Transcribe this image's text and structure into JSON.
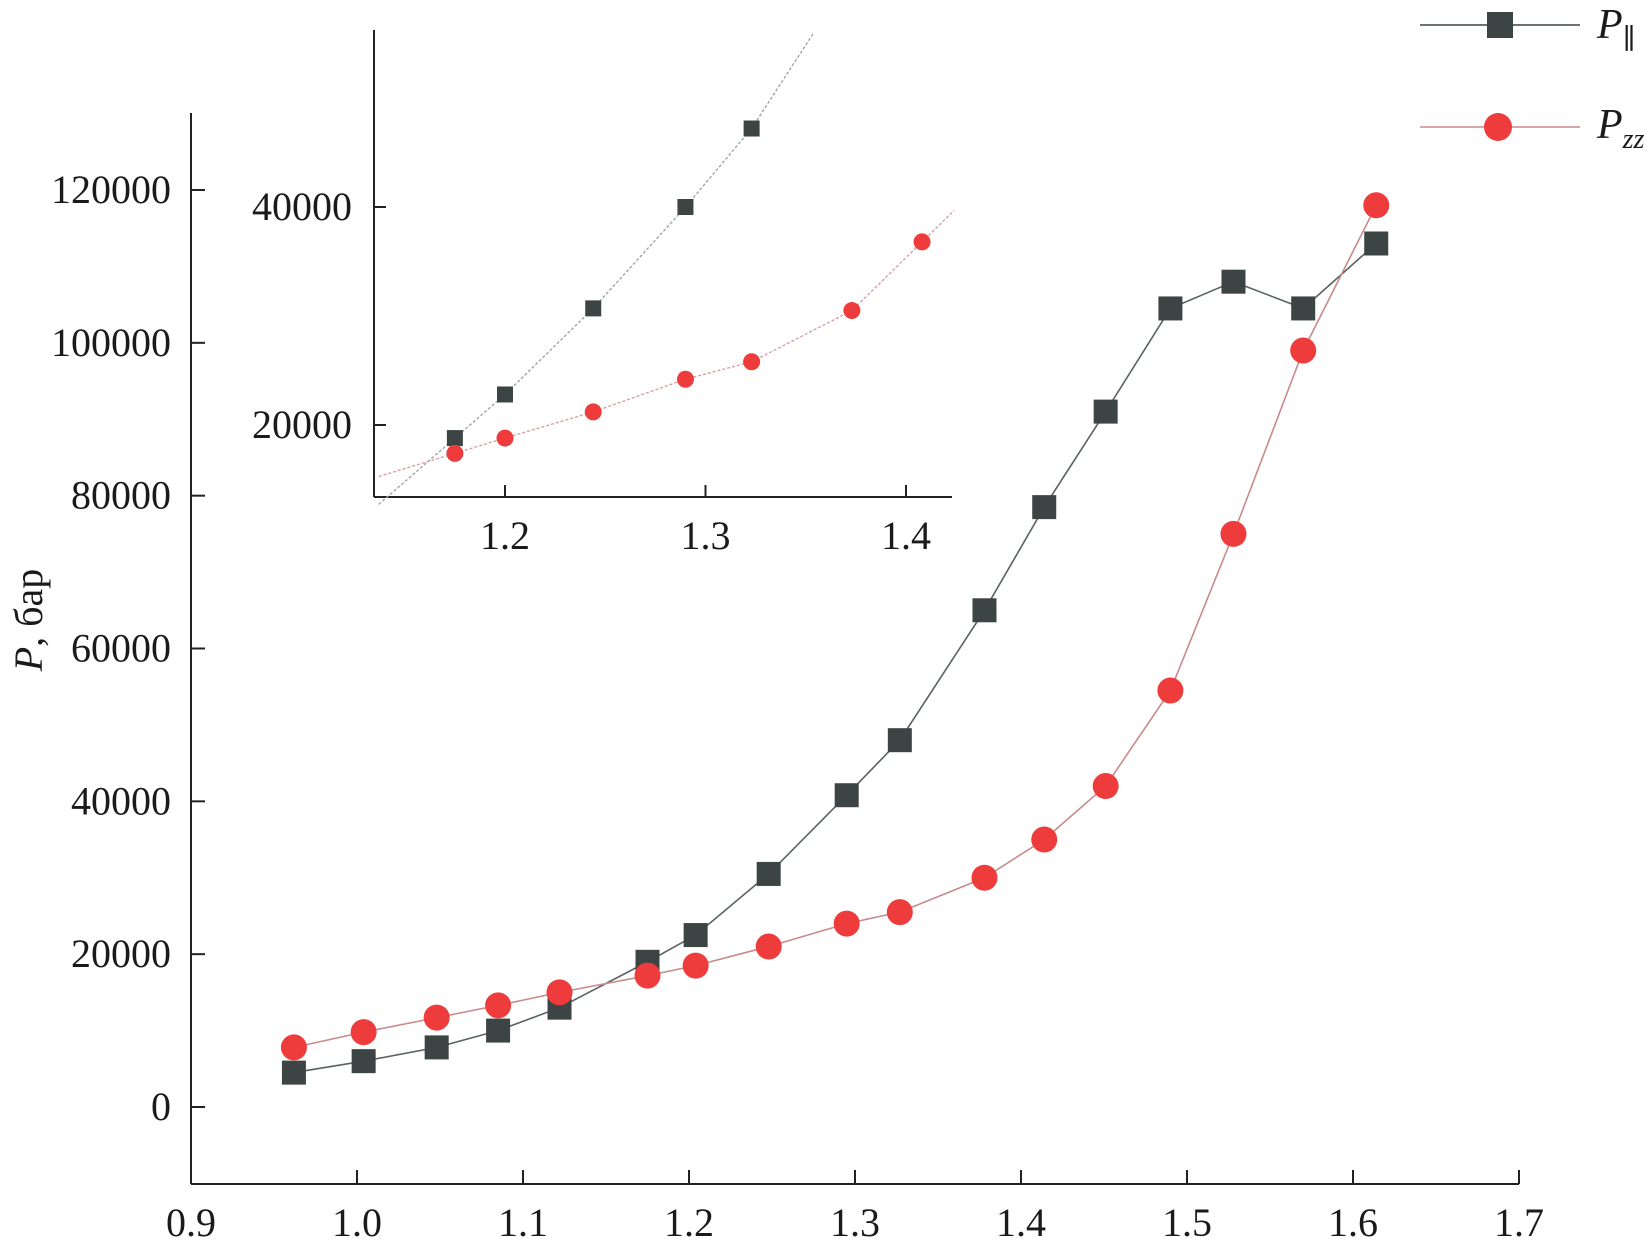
{
  "chart_data": [
    {
      "type": "line",
      "title": "",
      "xlabel": "",
      "ylabel": "P, бар",
      "ylabel_symbol": "P",
      "ylabel_unit": ", бар",
      "xlim": [
        0.9,
        1.7
      ],
      "ylim": [
        -10000,
        130000
      ],
      "x_ticks": [
        "0.9",
        "1.0",
        "1.1",
        "1.2",
        "1.3",
        "1.4",
        "1.5",
        "1.6",
        "1.7"
      ],
      "y_ticks": [
        "0",
        "20000",
        "40000",
        "60000",
        "80000",
        "100000",
        "120000"
      ],
      "legend_position": "top-right",
      "series": [
        {
          "name": "P∥",
          "name_base": "P",
          "name_sub": "∥",
          "color": "#3d4444",
          "marker": "square",
          "x": [
            0.962,
            1.004,
            1.048,
            1.085,
            1.122,
            1.175,
            1.204,
            1.248,
            1.295,
            1.327,
            1.378,
            1.414,
            1.451,
            1.49,
            1.528,
            1.57,
            1.614
          ],
          "y": [
            4500,
            6000,
            7800,
            10000,
            13000,
            19000,
            22500,
            30500,
            40800,
            48000,
            65000,
            78500,
            91000,
            104500,
            108000,
            104500,
            113000
          ]
        },
        {
          "name": "Pzz",
          "name_base": "P",
          "name_sub": "zz",
          "color": "#ee3b3b",
          "marker": "circle",
          "x": [
            0.962,
            1.004,
            1.048,
            1.085,
            1.122,
            1.175,
            1.204,
            1.248,
            1.295,
            1.327,
            1.378,
            1.414,
            1.451,
            1.49,
            1.528,
            1.57,
            1.614
          ],
          "y": [
            7800,
            9800,
            11700,
            13300,
            15000,
            17200,
            18500,
            21000,
            24000,
            25500,
            30000,
            35000,
            42000,
            54500,
            75000,
            99000,
            118000
          ]
        }
      ]
    },
    {
      "type": "line",
      "title": "",
      "xlabel": "",
      "ylabel": "",
      "xlim": [
        1.135,
        1.425
      ],
      "ylim": [
        15500,
        56000
      ],
      "x_ticks": [
        "1.2",
        "1.3",
        "1.4"
      ],
      "y_ticks": [
        "20000",
        "40000"
      ],
      "series": [
        {
          "name": "P∥",
          "color": "#3d4444",
          "marker": "square",
          "x": [
            1.175,
            1.2,
            1.244,
            1.29,
            1.323
          ],
          "y": [
            18800,
            22800,
            30700,
            40000,
            47200
          ]
        },
        {
          "name": "Pzz",
          "color": "#ee3b3b",
          "marker": "circle",
          "x": [
            1.175,
            1.2,
            1.244,
            1.29,
            1.323,
            1.373,
            1.408
          ],
          "y": [
            17400,
            18800,
            21200,
            24200,
            25800,
            30500,
            36800
          ]
        }
      ]
    }
  ]
}
